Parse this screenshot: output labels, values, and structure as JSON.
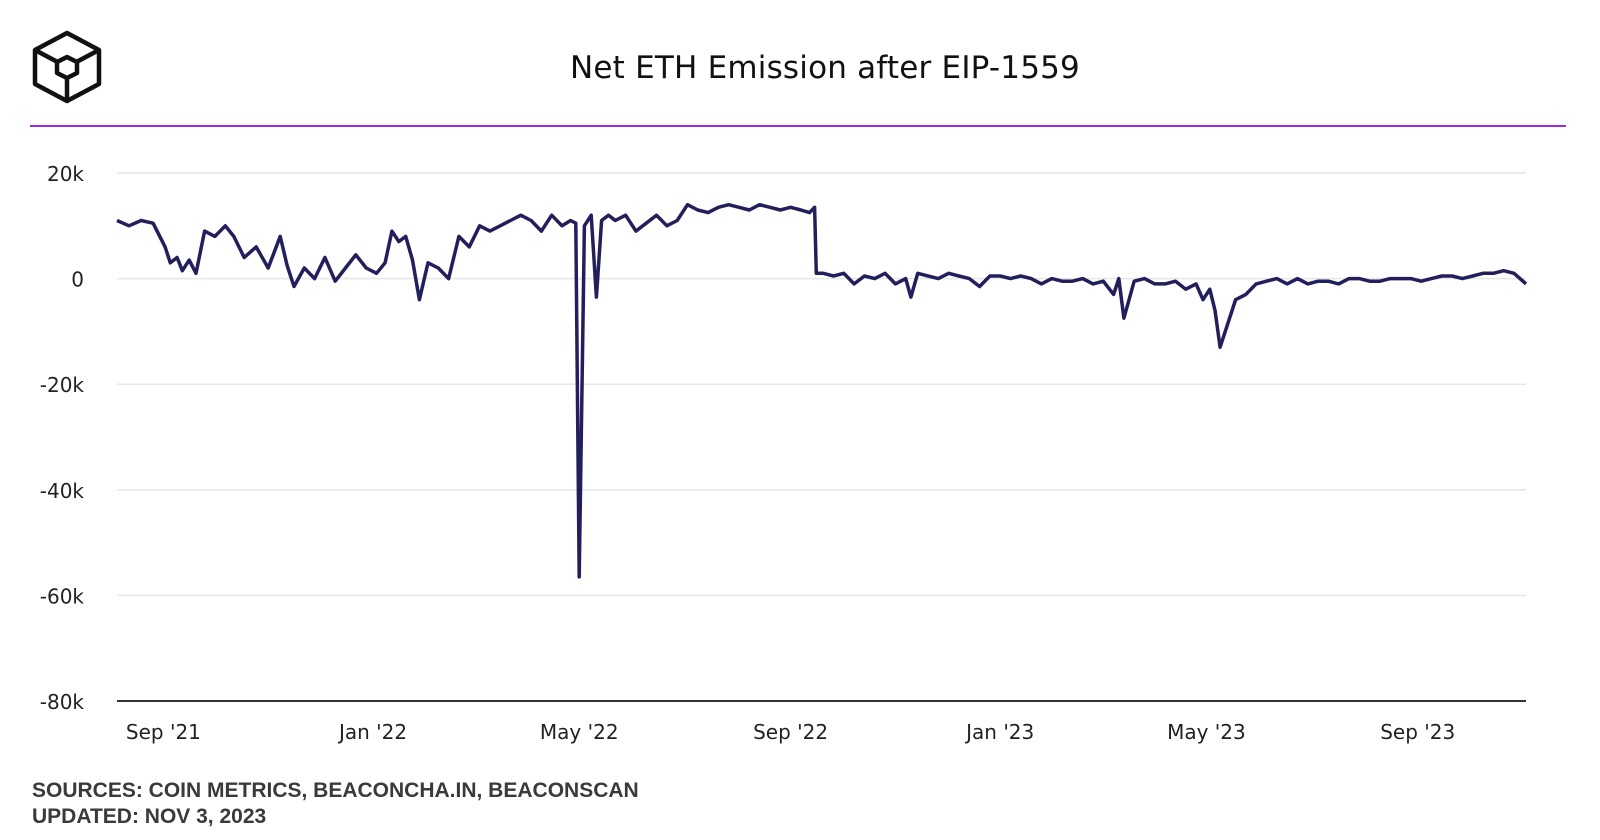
{
  "header": {
    "logo": "the-block-cube-logo",
    "title": "Net ETH Emission after EIP-1559"
  },
  "footer": {
    "sources": "SOURCES: COIN METRICS, BEACONCHA.IN, BEACONSCAN",
    "updated": "UPDATED: NOV 3, 2023"
  },
  "colors": {
    "accent_rule": "#9b2bdc",
    "series_line": "#231f5c",
    "grid": "#e6e6e6",
    "axis": "#333333"
  },
  "chart_data": {
    "type": "line",
    "title": "Net ETH Emission after EIP-1559",
    "xlabel": "",
    "ylabel": "",
    "ylim": [
      -80000,
      20000
    ],
    "yticks": [
      20000,
      0,
      -20000,
      -40000,
      -60000,
      -80000
    ],
    "ytick_labels": [
      "20k",
      "0",
      "-20k",
      "-40k",
      "-60k",
      "-80k"
    ],
    "xlim": [
      "2021-08-05",
      "2023-11-03"
    ],
    "xticks": [
      "2021-09-01",
      "2022-01-01",
      "2022-05-01",
      "2022-09-01",
      "2023-01-01",
      "2023-05-01",
      "2023-09-01"
    ],
    "xtick_labels": [
      "Sep '21",
      "Jan '22",
      "May '22",
      "Sep '22",
      "Jan '23",
      "May '23",
      "Sep '23"
    ],
    "grid": true,
    "legend": "none",
    "series": [
      {
        "x": [
          "2021-08-05",
          "2021-08-12",
          "2021-08-19",
          "2021-08-26",
          "2021-09-02",
          "2021-09-05",
          "2021-09-09",
          "2021-09-12",
          "2021-09-16",
          "2021-09-20",
          "2021-09-25",
          "2021-10-01",
          "2021-10-07",
          "2021-10-12",
          "2021-10-18",
          "2021-10-25",
          "2021-11-01",
          "2021-11-08",
          "2021-11-12",
          "2021-11-16",
          "2021-11-22",
          "2021-11-28",
          "2021-12-04",
          "2021-12-10",
          "2021-12-16",
          "2021-12-22",
          "2021-12-28",
          "2022-01-03",
          "2022-01-08",
          "2022-01-12",
          "2022-01-16",
          "2022-01-20",
          "2022-01-24",
          "2022-01-28",
          "2022-02-02",
          "2022-02-08",
          "2022-02-14",
          "2022-02-20",
          "2022-02-26",
          "2022-03-04",
          "2022-03-10",
          "2022-03-16",
          "2022-03-22",
          "2022-03-28",
          "2022-04-03",
          "2022-04-09",
          "2022-04-15",
          "2022-04-21",
          "2022-04-26",
          "2022-04-29",
          "2022-05-01",
          "2022-05-04",
          "2022-05-08",
          "2022-05-11",
          "2022-05-14",
          "2022-05-18",
          "2022-05-22",
          "2022-05-28",
          "2022-06-03",
          "2022-06-09",
          "2022-06-15",
          "2022-06-21",
          "2022-06-27",
          "2022-07-03",
          "2022-07-09",
          "2022-07-15",
          "2022-07-21",
          "2022-07-27",
          "2022-08-02",
          "2022-08-08",
          "2022-08-14",
          "2022-08-20",
          "2022-08-26",
          "2022-09-01",
          "2022-09-07",
          "2022-09-12",
          "2022-09-15",
          "2022-09-16",
          "2022-09-20",
          "2022-09-26",
          "2022-10-02",
          "2022-10-08",
          "2022-10-14",
          "2022-10-20",
          "2022-10-26",
          "2022-11-01",
          "2022-11-07",
          "2022-11-10",
          "2022-11-14",
          "2022-11-20",
          "2022-11-26",
          "2022-12-02",
          "2022-12-08",
          "2022-12-14",
          "2022-12-20",
          "2022-12-26",
          "2023-01-01",
          "2023-01-07",
          "2023-01-13",
          "2023-01-19",
          "2023-01-25",
          "2023-01-31",
          "2023-02-06",
          "2023-02-12",
          "2023-02-18",
          "2023-02-24",
          "2023-03-02",
          "2023-03-08",
          "2023-03-11",
          "2023-03-14",
          "2023-03-20",
          "2023-03-26",
          "2023-04-01",
          "2023-04-07",
          "2023-04-13",
          "2023-04-19",
          "2023-04-25",
          "2023-04-29",
          "2023-05-03",
          "2023-05-06",
          "2023-05-09",
          "2023-05-13",
          "2023-05-18",
          "2023-05-24",
          "2023-05-30",
          "2023-06-05",
          "2023-06-11",
          "2023-06-17",
          "2023-06-23",
          "2023-06-29",
          "2023-07-05",
          "2023-07-11",
          "2023-07-17",
          "2023-07-23",
          "2023-07-29",
          "2023-08-04",
          "2023-08-10",
          "2023-08-16",
          "2023-08-22",
          "2023-08-28",
          "2023-09-03",
          "2023-09-09",
          "2023-09-15",
          "2023-09-21",
          "2023-09-27",
          "2023-10-03",
          "2023-10-09",
          "2023-10-15",
          "2023-10-21",
          "2023-10-27",
          "2023-11-03"
        ],
        "values": [
          11000,
          10000,
          11000,
          10500,
          6000,
          3000,
          4000,
          1500,
          3500,
          1000,
          9000,
          8000,
          10000,
          8000,
          4000,
          6000,
          2000,
          8000,
          2500,
          -1500,
          2000,
          0,
          4000,
          -500,
          2000,
          4500,
          2000,
          1000,
          3000,
          9000,
          7000,
          8000,
          3500,
          -4000,
          3000,
          2000,
          0,
          8000,
          6000,
          10000,
          9000,
          10000,
          11000,
          12000,
          11000,
          9000,
          12000,
          10000,
          11000,
          10500,
          -56500,
          10000,
          12000,
          -3500,
          11000,
          12000,
          11000,
          12000,
          9000,
          10500,
          12000,
          10000,
          11000,
          14000,
          13000,
          12500,
          13500,
          14000,
          13500,
          13000,
          14000,
          13500,
          13000,
          13500,
          13000,
          12500,
          13500,
          1000,
          1000,
          500,
          1000,
          -1000,
          500,
          0,
          1000,
          -1000,
          0,
          -3500,
          1000,
          500,
          0,
          1000,
          500,
          0,
          -1500,
          500,
          500,
          0,
          500,
          0,
          -1000,
          0,
          -500,
          -500,
          0,
          -1000,
          -500,
          -3000,
          0,
          -7500,
          -500,
          0,
          -1000,
          -1000,
          -500,
          -2000,
          -1000,
          -4000,
          -2000,
          -6000,
          -13000,
          -9000,
          -4000,
          -3000,
          -1000,
          -500,
          0,
          -1000,
          0,
          -1000,
          -500,
          -500,
          -1000,
          0,
          0,
          -500,
          -500,
          0,
          0,
          0,
          -500,
          0,
          500,
          500,
          0,
          500,
          1000,
          1000,
          1500,
          1000,
          -1000
        ]
      }
    ]
  }
}
